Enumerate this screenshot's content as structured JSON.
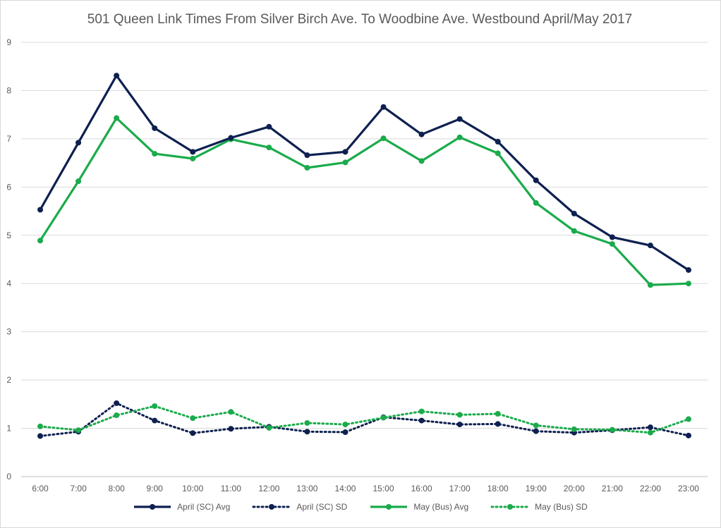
{
  "chart_data": {
    "type": "line",
    "title": "501 Queen Link Times From Silver Birch Ave. To Woodbine Ave. Westbound April/May 2017",
    "xlabel": "",
    "ylabel": "",
    "categories": [
      "6:00",
      "7:00",
      "8:00",
      "9:00",
      "10:00",
      "11:00",
      "12:00",
      "13:00",
      "14:00",
      "15:00",
      "16:00",
      "17:00",
      "18:00",
      "19:00",
      "20:00",
      "21:00",
      "22:00",
      "23:00"
    ],
    "ylim": [
      0,
      9
    ],
    "yticks": [
      "0",
      "1",
      "2",
      "3",
      "4",
      "5",
      "6",
      "7",
      "8",
      "9"
    ],
    "grid": true,
    "legend_position": "bottom",
    "series": [
      {
        "name": "April (SC) Avg",
        "color": "#0e2050",
        "style": "solid",
        "values": [
          5.53,
          6.92,
          8.31,
          7.22,
          6.73,
          7.02,
          7.25,
          6.66,
          6.73,
          7.66,
          7.09,
          7.41,
          6.94,
          6.14,
          5.45,
          4.96,
          4.79,
          4.28
        ]
      },
      {
        "name": "April (SC) SD",
        "color": "#0e2050",
        "style": "dotted",
        "values": [
          0.84,
          0.93,
          1.52,
          1.16,
          0.9,
          0.99,
          1.03,
          0.93,
          0.92,
          1.23,
          1.16,
          1.08,
          1.09,
          0.94,
          0.91,
          0.96,
          1.02,
          0.85
        ]
      },
      {
        "name": "May (Bus) Avg",
        "color": "#1aab4b",
        "style": "solid",
        "values": [
          4.89,
          6.12,
          7.43,
          6.69,
          6.59,
          6.99,
          6.82,
          6.4,
          6.51,
          7.01,
          6.54,
          7.03,
          6.7,
          5.67,
          5.09,
          4.82,
          3.97,
          4.0
        ]
      },
      {
        "name": "May (Bus) SD",
        "color": "#1aab4b",
        "style": "dotted",
        "values": [
          1.04,
          0.96,
          1.27,
          1.46,
          1.21,
          1.34,
          1.01,
          1.11,
          1.08,
          1.22,
          1.35,
          1.28,
          1.3,
          1.06,
          0.98,
          0.97,
          0.91,
          1.19
        ]
      }
    ]
  }
}
